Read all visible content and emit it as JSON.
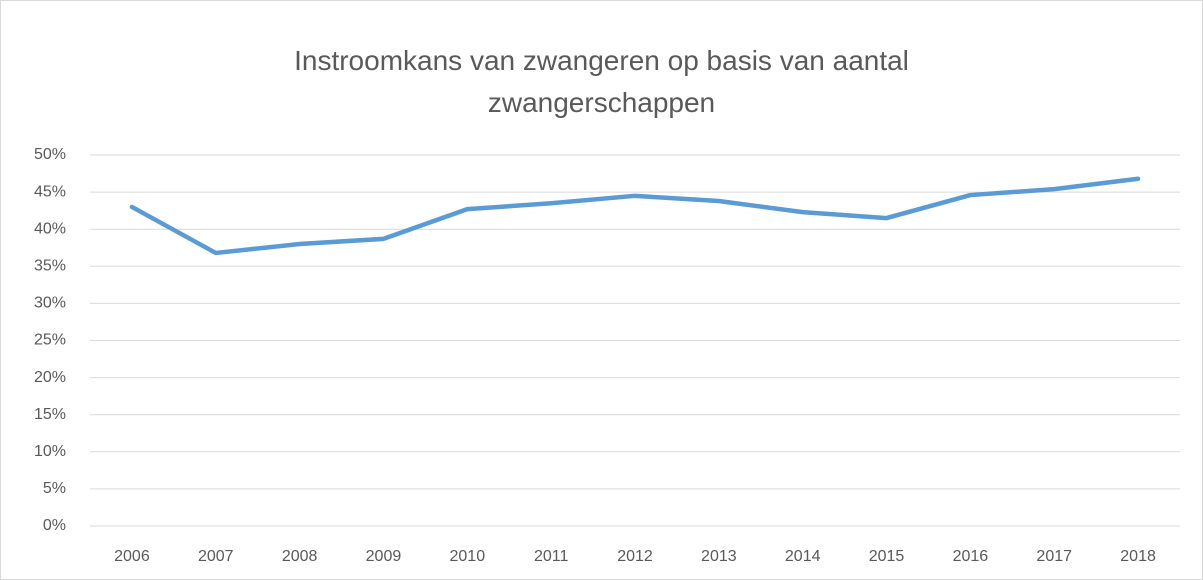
{
  "chart_data": {
    "type": "line",
    "title": "Instroomkans van zwangeren op basis van aantal zwangerschappen",
    "categories": [
      "2006",
      "2007",
      "2008",
      "2009",
      "2010",
      "2011",
      "2012",
      "2013",
      "2014",
      "2015",
      "2016",
      "2017",
      "2018"
    ],
    "series": [
      {
        "color": "#5b9bd5",
        "values": [
          43.0,
          36.8,
          38.0,
          38.7,
          42.7,
          43.5,
          44.5,
          43.8,
          42.3,
          41.5,
          44.6,
          45.4,
          46.8
        ]
      }
    ],
    "ylim": [
      0,
      50
    ],
    "yticks": [
      {
        "value": 0,
        "label": "0%"
      },
      {
        "value": 5,
        "label": "5%"
      },
      {
        "value": 10,
        "label": "10%"
      },
      {
        "value": 15,
        "label": "15%"
      },
      {
        "value": 20,
        "label": "20%"
      },
      {
        "value": 25,
        "label": "25%"
      },
      {
        "value": 30,
        "label": "30%"
      },
      {
        "value": 35,
        "label": "35%"
      },
      {
        "value": 40,
        "label": "40%"
      },
      {
        "value": 45,
        "label": "45%"
      },
      {
        "value": 50,
        "label": "50%"
      }
    ],
    "grid": true
  }
}
